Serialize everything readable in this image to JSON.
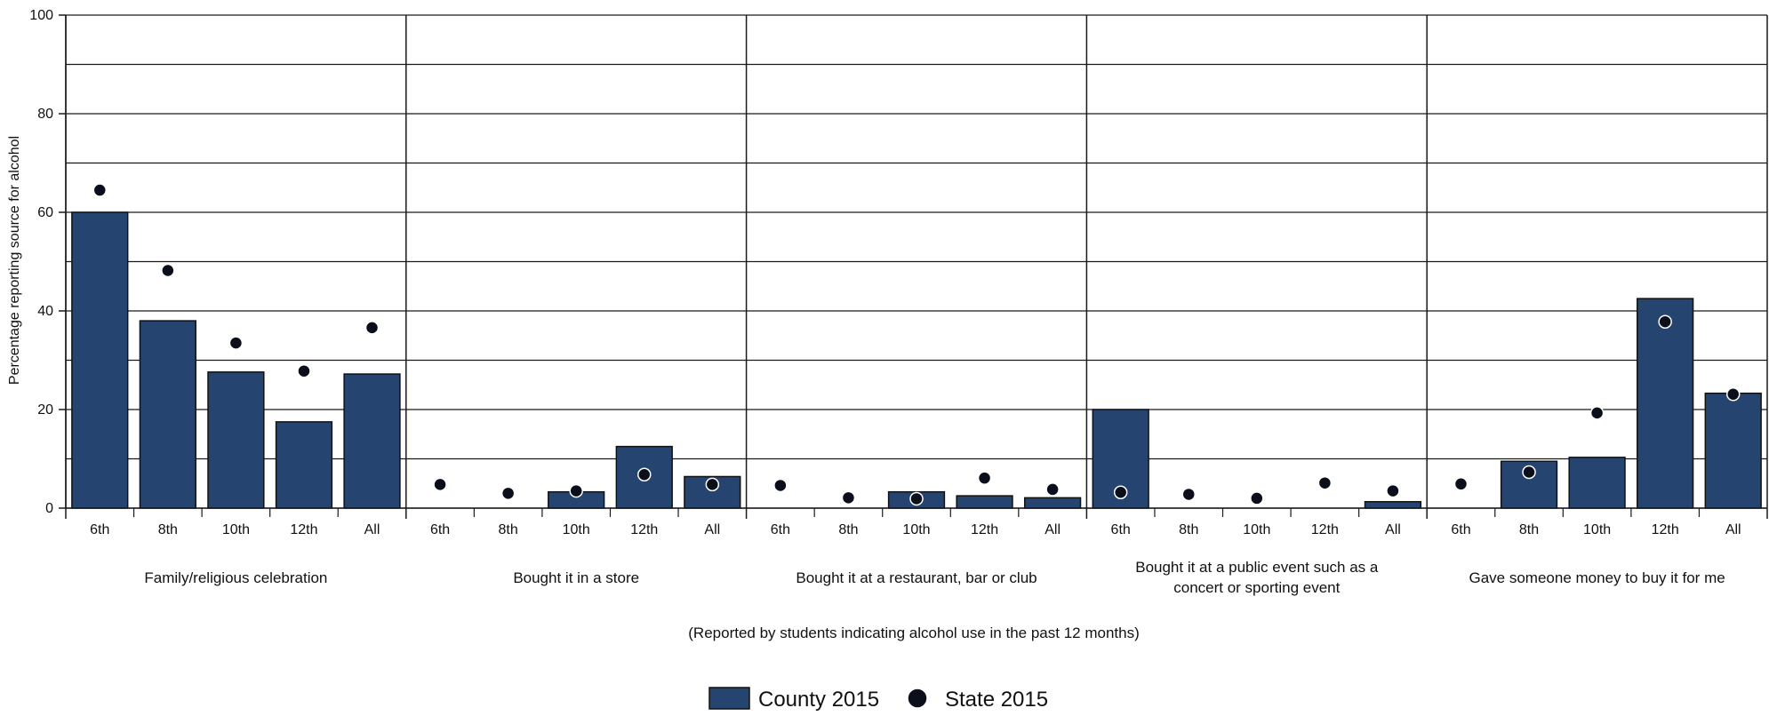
{
  "chart_data": {
    "type": "bar",
    "ylabel": "Percentage reporting source for alcohol",
    "ylim": [
      0,
      100
    ],
    "y_ticks": [
      0,
      20,
      40,
      60,
      80,
      100
    ],
    "y_gridlines": [
      0,
      10,
      20,
      30,
      40,
      50,
      60,
      70,
      80,
      90,
      100
    ],
    "grid": true,
    "note": "(Reported by students indicating alcohol use in the past 12 months)",
    "categories": [
      "6th",
      "8th",
      "10th",
      "12th",
      "All"
    ],
    "groups": [
      {
        "label_lines": [
          "Family/religious celebration"
        ],
        "county": [
          60,
          38,
          27.6,
          17.5,
          27.2
        ],
        "state": [
          64.5,
          48.2,
          33.5,
          27.8,
          36.6
        ]
      },
      {
        "label_lines": [
          "Bought it in a store"
        ],
        "county": [
          0,
          0,
          3.3,
          12.5,
          6.4
        ],
        "state": [
          4.8,
          3,
          3.5,
          6.8,
          4.8
        ]
      },
      {
        "label_lines": [
          "Bought it at a restaurant, bar or club"
        ],
        "county": [
          0,
          0,
          3.3,
          2.5,
          2.1
        ],
        "state": [
          4.6,
          2.1,
          1.9,
          6.1,
          3.8
        ]
      },
      {
        "label_lines": [
          "Bought it at a public event such as a",
          "concert or sporting event"
        ],
        "county": [
          20,
          0,
          0,
          0,
          1.3
        ],
        "state": [
          3.2,
          2.8,
          2,
          5.1,
          3.5
        ]
      },
      {
        "label_lines": [
          "Gave someone money to buy it for me"
        ],
        "county": [
          0,
          9.5,
          10.3,
          42.5,
          23.3
        ],
        "state": [
          4.9,
          7.3,
          19.3,
          37.8,
          23.1
        ]
      }
    ],
    "series": [
      {
        "name": "County 2015",
        "kind": "bar",
        "color": "#264470"
      },
      {
        "name": "State 2015",
        "kind": "point",
        "color": "#0b0f1c"
      }
    ],
    "legend_position": "bottom-center"
  }
}
